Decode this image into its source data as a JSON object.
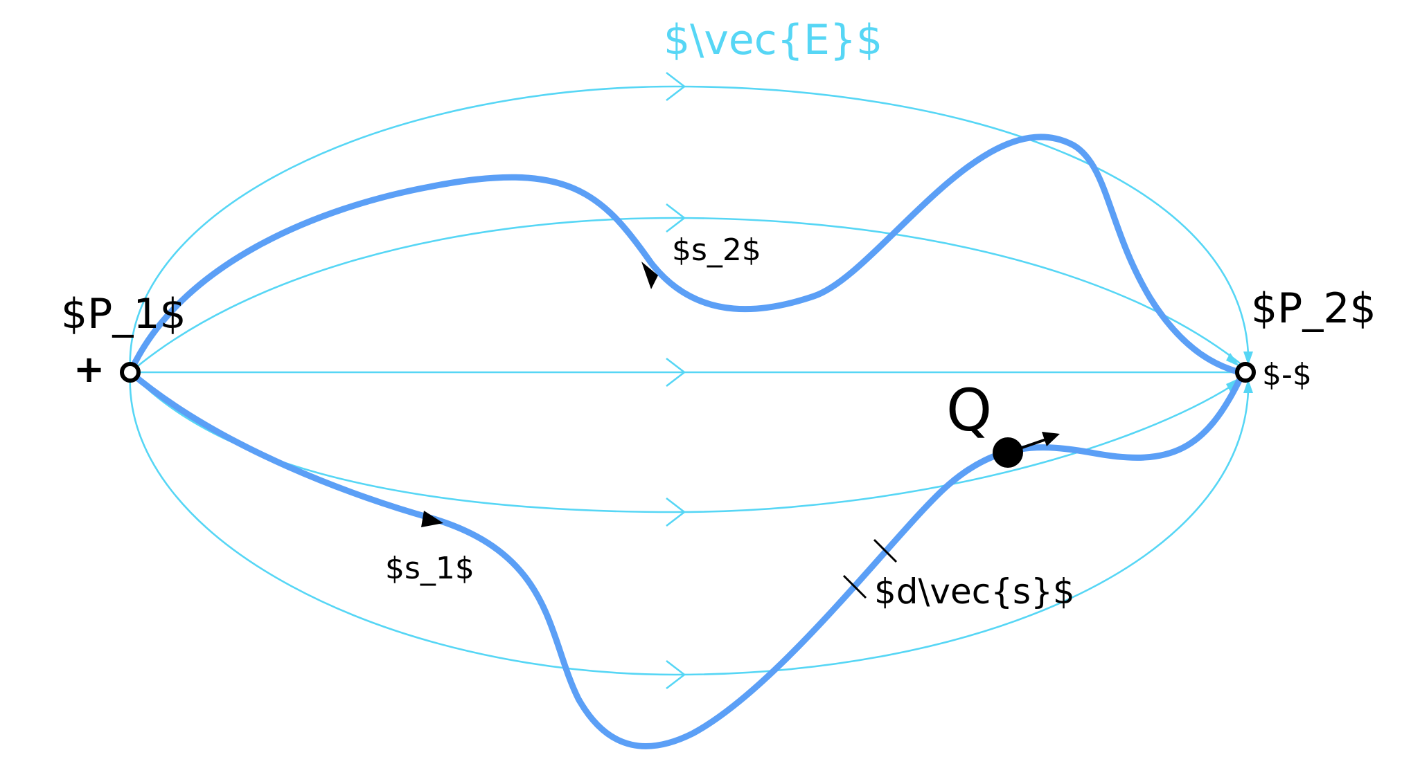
{
  "labels": {
    "field": "$\\vec{E}$",
    "p1": "$P_1$",
    "p2": "$P_2$",
    "plus": "+",
    "minus": "$-$",
    "s1": "$s_1$",
    "s2": "$s_2$",
    "q": "Q",
    "ds": "$d\\vec{s}$"
  },
  "colors": {
    "field_lines": "#56d6f5",
    "paths": "#5b9ff6",
    "text": "#000000"
  }
}
